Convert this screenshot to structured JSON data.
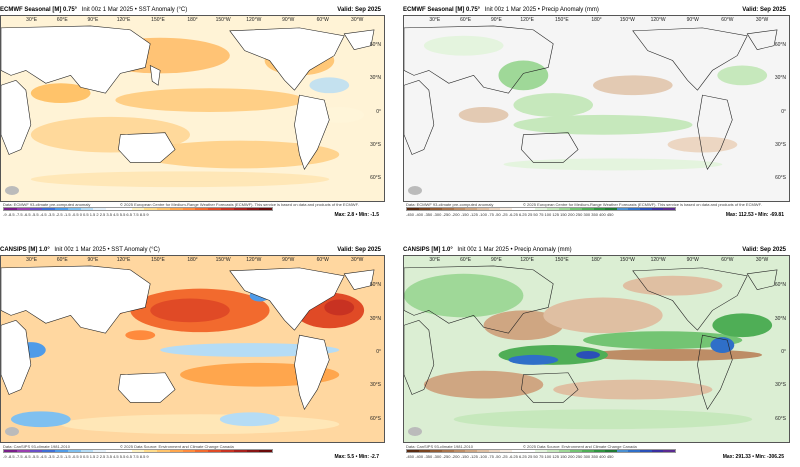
{
  "panels": {
    "tl": {
      "model": "ECMWF Seasonal [M] 0.75°",
      "subtitle": "Init 00z 1 Mar 2025 • SST Anomaly (°C)",
      "valid": "Valid: Sep 2025",
      "credit": "Data: ECMWF 93-climate pre-computed anomaly",
      "center_credit": "© 2025 European Centre for Medium-Range Weather Forecasts (ECMWF). This service is based on data and products of the ECMWF.",
      "colorbar_labels": "-9 -8.5 -7.5 -6.5 -5.5 -4.5 -3.5 -2.5 -1.5 -0.5 0 0.5 1.5 2 2.5 3.5 4.5 5.5 6.5 7.5 8.5 9",
      "max_min": "Max: 2.8 • Min: -1.5",
      "lon_labels": [
        "30°E",
        "60°E",
        "90°E",
        "120°E",
        "150°E",
        "180°",
        "150°W",
        "120°W",
        "90°W",
        "60°W",
        "30°W"
      ],
      "lat_labels": [
        "60°N",
        "30°N",
        "0°",
        "30°S",
        "60°S"
      ]
    },
    "tr": {
      "model": "ECMWF Seasonal [M] 0.75°",
      "subtitle": "Init 00z 1 Mar 2025 • Precip Anomaly (mm)",
      "valid": "Valid: Sep 2025",
      "credit": "Data: ECMWF 93-climate pre-computed anomaly",
      "center_credit": "© 2025 European Centre for Medium-Range Weather Forecasts (ECMWF). This service is based on data and products of the ECMWF.",
      "colorbar_labels": "-450 -400 -350 -300 -250 -200 -150 -125 -100 -75 -50 -25 -6.25 6.25 25 50 75 100 125 150 200 250 300 350 400 450",
      "max_min": "Max: 112.53 • Min: -69.81",
      "lon_labels": [
        "30°E",
        "60°E",
        "90°E",
        "120°E",
        "150°E",
        "180°",
        "150°W",
        "120°W",
        "90°W",
        "60°W",
        "30°W"
      ],
      "lat_labels": [
        "60°N",
        "30°N",
        "0°",
        "30°S",
        "60°S"
      ]
    },
    "bl": {
      "model": "CANSIPS [M] 1.0°",
      "subtitle": "Init 00z 1 Mar 2025 • SST Anomaly (°C)",
      "valid": "Valid: Sep 2025",
      "credit": "Data: CanSIPS 93-climate 1981-2010",
      "center_credit": "© 2025 Data Source: Environment and Climate Change Canada",
      "colorbar_labels": "-9 -8.5 -7.5 -6.5 -5.5 -4.5 -3.5 -2.5 -1.5 -0.5 0 0.5 1.5 2 2.5 3.5 4.5 5.5 6.5 7.5 8.5 9",
      "max_min": "Max: 5.5 • Min: -2.7",
      "lon_labels": [
        "30°E",
        "60°E",
        "90°E",
        "120°E",
        "150°E",
        "180°",
        "150°W",
        "120°W",
        "90°W",
        "60°W",
        "30°W"
      ],
      "lat_labels": [
        "60°N",
        "30°N",
        "0°",
        "30°S",
        "60°S"
      ]
    },
    "br": {
      "model": "CANSIPS [M] 1.0°",
      "subtitle": "Init 00z 1 Mar 2025 • Precip Anomaly (mm)",
      "valid": "Valid: Sep 2025",
      "credit": "Data: CanSIPS 93-climate 1981-2010",
      "center_credit": "© 2025 Data Source: Environment and Climate Change Canada",
      "colorbar_labels": "-450 -400 -350 -300 -250 -200 -150 -125 -100 -75 -50 -25 -6.25 6.25 25 50 75 100 125 150 200 250 300 350 400 450",
      "max_min": "Max: 291.33 • Min: -306.25",
      "lon_labels": [
        "30°E",
        "60°E",
        "90°E",
        "120°E",
        "150°E",
        "180°",
        "150°W",
        "120°W",
        "90°W",
        "60°W",
        "30°W"
      ],
      "lat_labels": [
        "60°N",
        "30°N",
        "0°",
        "30°S",
        "60°S"
      ]
    }
  },
  "palettes": {
    "sst": [
      "#7a1f8a",
      "#9a3fb0",
      "#6a4fc8",
      "#3f6fd6",
      "#4f9be8",
      "#7fc0f0",
      "#b5dcf5",
      "#e6f2fb",
      "#ffffff",
      "#ffffff",
      "#fff2c0",
      "#ffdc8a",
      "#ffc36a",
      "#ffa64d",
      "#ff8a3d",
      "#f26a2e",
      "#e04a26",
      "#c83222",
      "#a8201c",
      "#881414",
      "#6a0a0a"
    ],
    "precip": [
      "#5a2a10",
      "#7a4420",
      "#935c34",
      "#a9744c",
      "#bd8d66",
      "#cfa682",
      "#dfbfa2",
      "#ecd6c2",
      "#f6ebe0",
      "#ffffff",
      "#ffffff",
      "#e4f4de",
      "#c6e8bc",
      "#9fd898",
      "#73c473",
      "#4fae56",
      "#2f9440",
      "#1f7a34",
      "#4a8fd0",
      "#2f6fc8",
      "#2a4fb8",
      "#3a2fa0",
      "#5a2a90"
    ]
  },
  "colors": {
    "land": "#ffffff",
    "coast": "#222222",
    "ocean_neutral": "#f4f4f4"
  }
}
